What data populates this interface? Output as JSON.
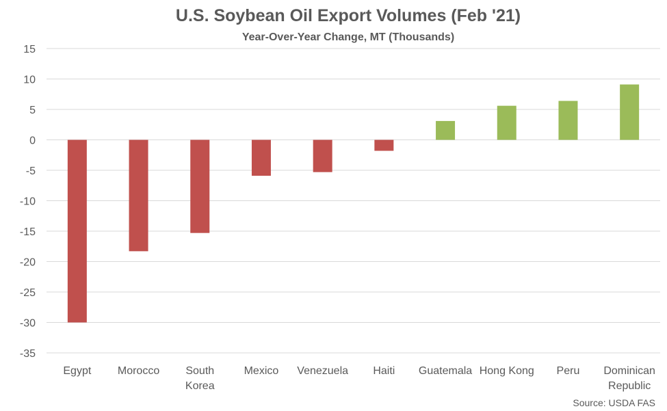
{
  "chart_data": {
    "type": "bar",
    "title": "U.S. Soybean Oil Export Volumes (Feb '21)",
    "subtitle": "Year-Over-Year Change, MT (Thousands)",
    "categories": [
      "Egypt",
      "Morocco",
      "South Korea",
      "Mexico",
      "Venezuela",
      "Haiti",
      "Guatemala",
      "Hong Kong",
      "Peru",
      "Dominican Republic"
    ],
    "category_lines": [
      [
        "Egypt"
      ],
      [
        "Morocco"
      ],
      [
        "South",
        "Korea"
      ],
      [
        "Mexico"
      ],
      [
        "Venezuela"
      ],
      [
        "Haiti"
      ],
      [
        "Guatemala"
      ],
      [
        "Hong Kong"
      ],
      [
        "Peru"
      ],
      [
        "Dominican",
        "Republic"
      ]
    ],
    "values": [
      -30.0,
      -18.3,
      -15.3,
      -5.9,
      -5.3,
      -1.8,
      3.1,
      5.6,
      6.4,
      9.1
    ],
    "ylim": [
      -35,
      15
    ],
    "yticks": [
      15,
      10,
      5,
      0,
      -5,
      -10,
      -15,
      -20,
      -25,
      -30,
      -35
    ],
    "grid": true,
    "legend": "none",
    "colors": {
      "negative": "#C0504D",
      "positive": "#9BBB59",
      "grid": "#D9D9D9",
      "text": "#595959"
    },
    "source": "Source: USDA FAS"
  }
}
